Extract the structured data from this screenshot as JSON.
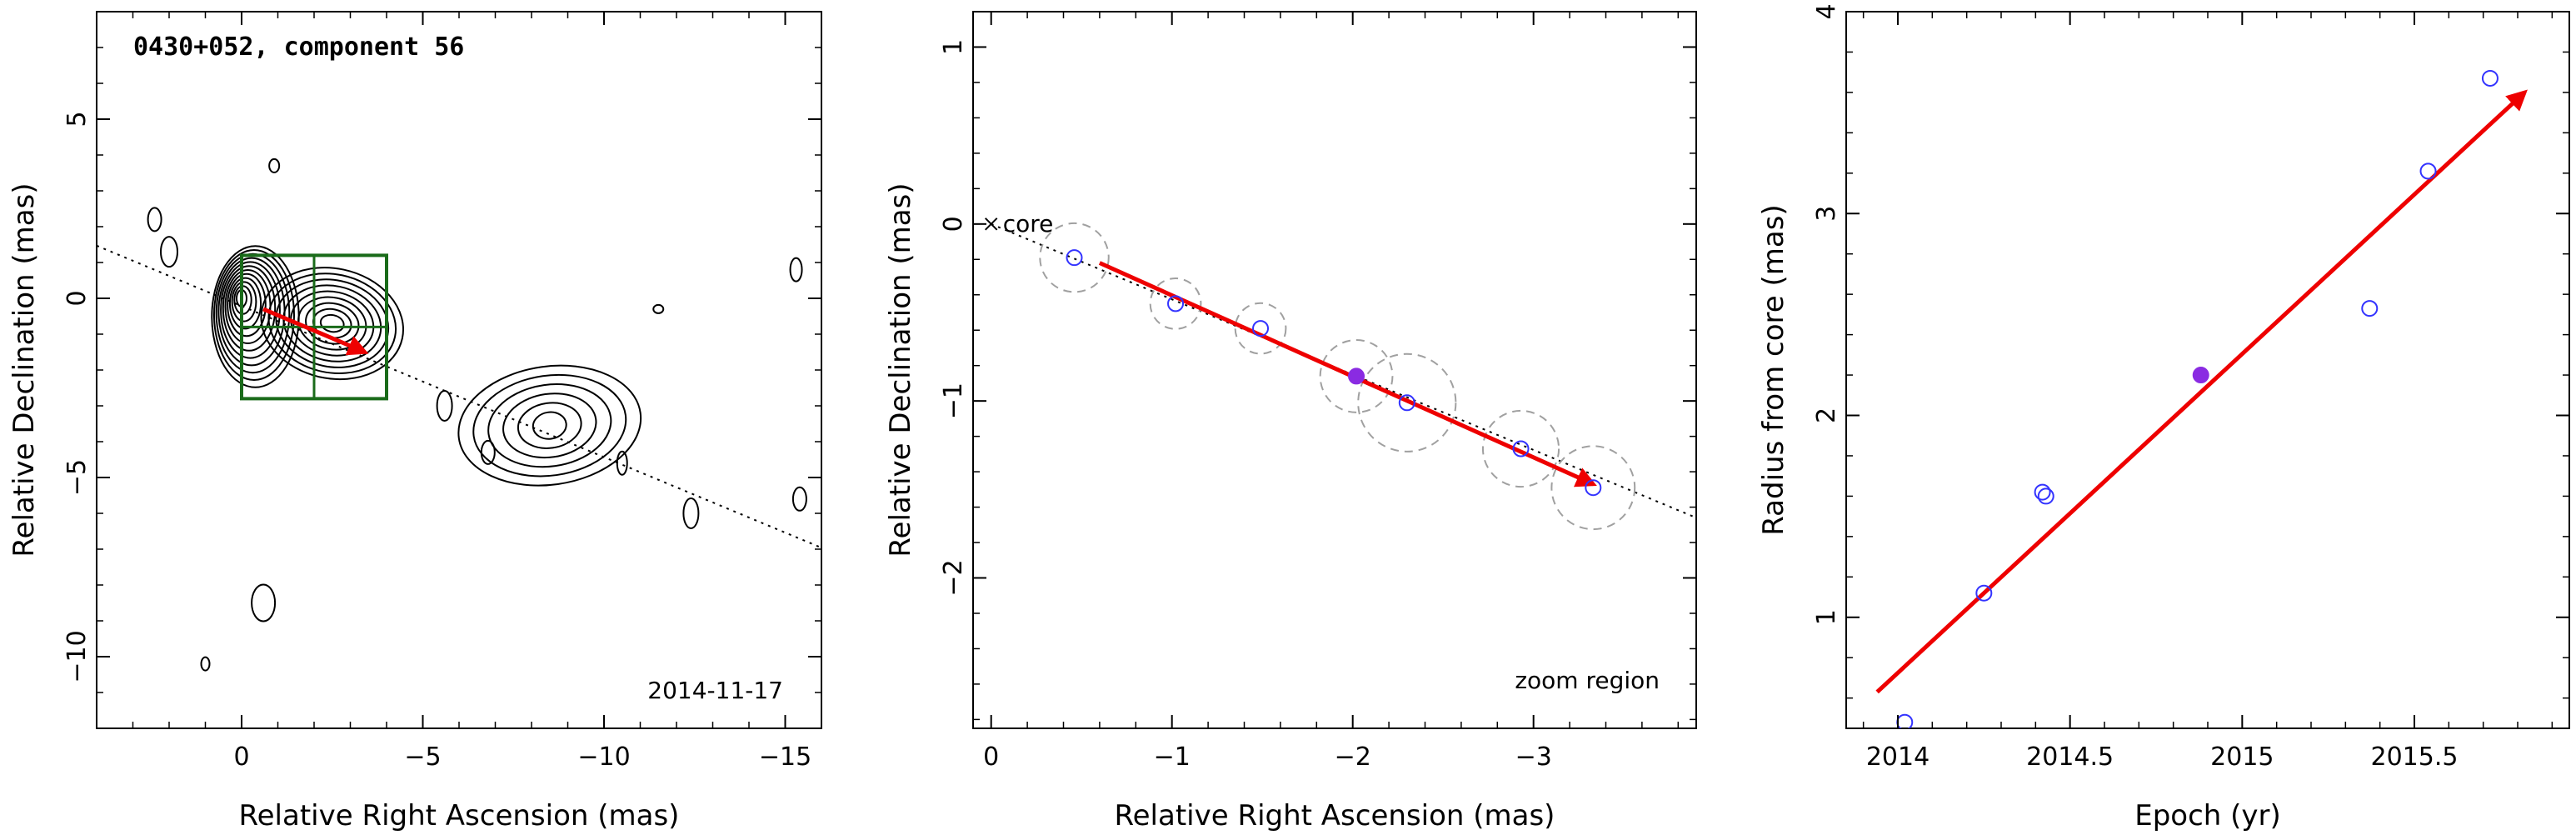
{
  "chart_data": [
    {
      "type": "scatter",
      "title": "0430+052, component 56",
      "xlabel": "Relative Right Ascension (mas)",
      "ylabel": "Relative Declination (mas)",
      "xlim": [
        4,
        -16
      ],
      "ylim": [
        -12,
        8
      ],
      "xticks": [
        0,
        -5,
        -10,
        -15
      ],
      "yticks": [
        -10,
        -5,
        0,
        5
      ],
      "annotation": "2014-11-17",
      "axis_line": {
        "x": [
          4,
          -16
        ],
        "y": [
          1.47,
          -6.96
        ]
      },
      "contour_centers": [
        {
          "x": 0.0,
          "y": 0.0
        },
        {
          "x": -2.5,
          "y": -0.7
        },
        {
          "x": -8.0,
          "y": -3.4
        },
        {
          "x": -9.0,
          "y": -3.7
        }
      ],
      "zoom_box": {
        "x": [
          0,
          -4
        ],
        "y": [
          1.2,
          -2.8
        ]
      },
      "vector": {
        "x": [
          -0.6,
          -3.4
        ],
        "y": [
          -0.3,
          -1.5
        ]
      },
      "colors": {
        "box": "#1a6b1a",
        "vector": "#ee0000",
        "contours": "#000000"
      }
    },
    {
      "type": "scatter",
      "annotation": "zoom region",
      "core_label": "core",
      "xlabel": "Relative Right Ascension (mas)",
      "ylabel": "Relative Declination (mas)",
      "xlim": [
        0.1,
        -3.9
      ],
      "ylim": [
        -2.85,
        1.2
      ],
      "xticks": [
        0,
        -1,
        -2,
        -3
      ],
      "yticks": [
        -2,
        -1,
        0,
        1
      ],
      "points": [
        {
          "x": -0.46,
          "y": -0.19,
          "r": 0.19
        },
        {
          "x": -1.02,
          "y": -0.45,
          "r": 0.14
        },
        {
          "x": -1.49,
          "y": -0.59,
          "r": 0.14
        },
        {
          "x": -2.02,
          "y": -0.86,
          "r": 0.2,
          "highlight": true
        },
        {
          "x": -2.3,
          "y": -1.01,
          "r": 0.27
        },
        {
          "x": -2.93,
          "y": -1.27,
          "r": 0.21
        },
        {
          "x": -3.33,
          "y": -1.49,
          "r": 0.23
        }
      ],
      "axis_line": {
        "x": [
          0.0,
          -3.9
        ],
        "y": [
          0.0,
          -1.66
        ]
      },
      "vector": {
        "x": [
          -0.6,
          -3.33
        ],
        "y": [
          -0.22,
          -1.47
        ]
      },
      "colors": {
        "point": "#3333ff",
        "highlight": "#8a2be2",
        "circle": "#a0a0a0",
        "vector": "#ee0000"
      }
    },
    {
      "type": "scatter",
      "xlabel": "Epoch (yr)",
      "ylabel": "Radius from core (mas)",
      "xlim": [
        2013.85,
        2015.95
      ],
      "ylim": [
        0.45,
        4.0
      ],
      "xticks": [
        2014,
        2014.5,
        2015,
        2015.5
      ],
      "xtick_labels": [
        "2014",
        "2014.5",
        "2015",
        "2015.5"
      ],
      "yticks": [
        1,
        2,
        3,
        4
      ],
      "points": [
        {
          "x": 2014.02,
          "y": 0.48
        },
        {
          "x": 2014.25,
          "y": 1.12
        },
        {
          "x": 2014.42,
          "y": 1.62
        },
        {
          "x": 2014.43,
          "y": 1.6
        },
        {
          "x": 2014.88,
          "y": 2.2,
          "highlight": true
        },
        {
          "x": 2015.37,
          "y": 2.53
        },
        {
          "x": 2015.54,
          "y": 3.21
        },
        {
          "x": 2015.72,
          "y": 3.67
        }
      ],
      "fit": {
        "x": [
          2013.94,
          2015.82
        ],
        "y": [
          0.63,
          3.6
        ]
      },
      "colors": {
        "point": "#3333ff",
        "highlight": "#8a2be2",
        "fit": "#ee0000"
      }
    }
  ]
}
